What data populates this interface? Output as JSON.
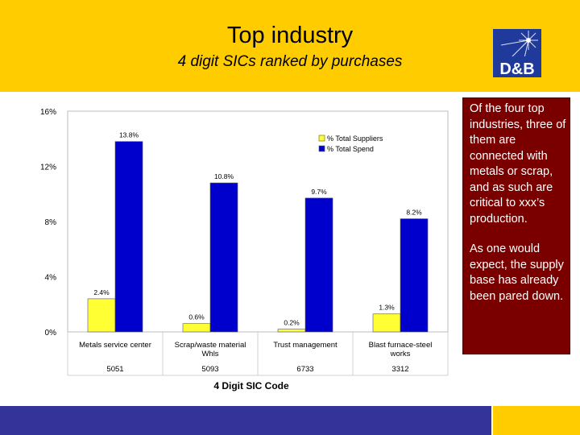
{
  "header": {
    "title": "Top industry",
    "subtitle": "4 digit SICs ranked by purchases",
    "logo_text": "D&B"
  },
  "panel": {
    "paragraphs": [
      "Of the four top industries, three of them are connected with metals or scrap, and as such are critical to xxx’s production.",
      "As one would expect, the supply base has already been pared down."
    ]
  },
  "colors": {
    "header_bg": "#ffcc00",
    "panel_bg": "#7a0000",
    "series_suppliers": "#ffff33",
    "series_spend": "#0000cc",
    "footer_bar": "#333399"
  },
  "chart_data": {
    "type": "bar",
    "categories": [
      "Metals service center",
      "Scrap/waste material Whls",
      "Trust management",
      "Blast furnace-steel works"
    ],
    "sic_codes": [
      "5051",
      "5093",
      "6733",
      "3312"
    ],
    "series": [
      {
        "name": "% Total Suppliers",
        "values": [
          2.4,
          0.6,
          0.2,
          1.3
        ],
        "labels": [
          "2.4%",
          "0.6%",
          "0.2%",
          "1.3%"
        ]
      },
      {
        "name": "% Total Spend",
        "values": [
          13.8,
          10.8,
          9.7,
          8.2
        ],
        "labels": [
          "13.8%",
          "10.8%",
          "9.7%",
          "8.2%"
        ]
      }
    ],
    "xlabel": "4 Digit SIC Code",
    "ylabel": "",
    "ylim": [
      0,
      16
    ],
    "yticks": [
      0,
      4,
      8,
      12,
      16
    ],
    "ytick_labels": [
      "0%",
      "4%",
      "8%",
      "12%",
      "16%"
    ],
    "legend_position": "top-right",
    "grid": false
  }
}
